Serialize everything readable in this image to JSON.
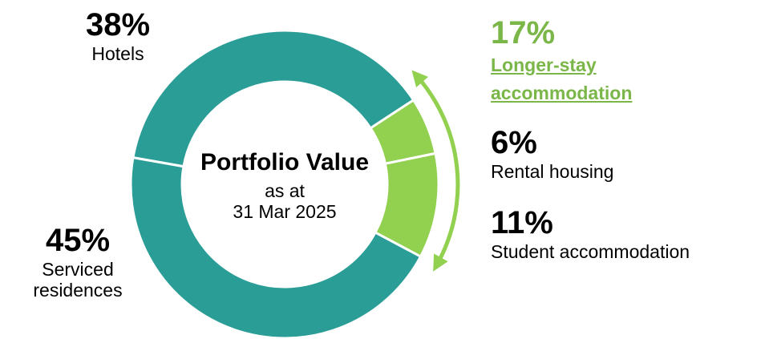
{
  "chart_data": {
    "type": "donut",
    "center_title": "Portfolio Value",
    "center_subtitle": [
      "as at",
      "31 Mar 2025"
    ],
    "categories": [
      "Hotels",
      "Rental housing",
      "Student accommodation",
      "Serviced residences"
    ],
    "values": [
      38,
      6,
      11,
      45
    ],
    "value_labels": [
      "38%",
      "6%",
      "11%",
      "45%"
    ],
    "colors": [
      "#2a9d96",
      "#92d050",
      "#92d050",
      "#2a9d96"
    ],
    "group": {
      "name": "Longer-stay accommodation",
      "value": 17,
      "value_label": "17%",
      "color": "#7ab648"
    }
  }
}
